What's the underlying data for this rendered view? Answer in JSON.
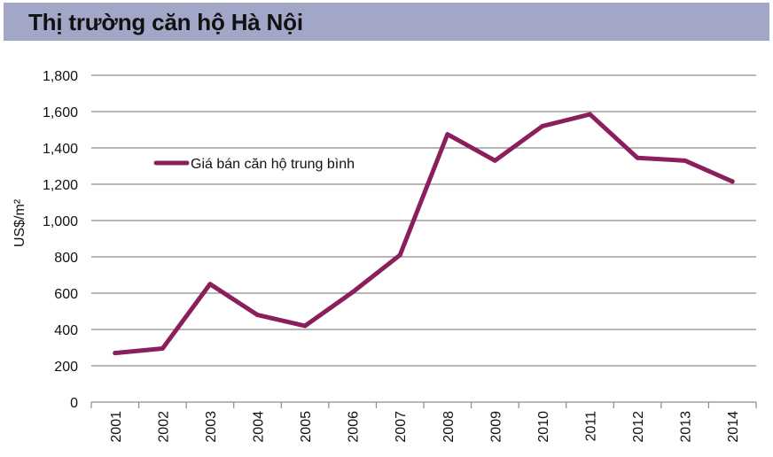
{
  "header": {
    "title": "Thị trường căn hộ Hà Nội"
  },
  "chart_data": {
    "type": "line",
    "title": "Thị trường căn hộ Hà Nội",
    "xlabel": "",
    "ylabel": "US$/m²",
    "ylim": [
      0,
      1800
    ],
    "yticks": [
      0,
      200,
      400,
      600,
      800,
      1000,
      1200,
      1400,
      1600,
      1800
    ],
    "ytick_labels": [
      "0",
      "200",
      "400",
      "600",
      "800",
      "1,000",
      "1,200",
      "1,400",
      "1,600",
      "1,800"
    ],
    "categories": [
      "2001",
      "2002",
      "2003",
      "2004",
      "2005",
      "2006",
      "2007",
      "2008",
      "2009",
      "2010",
      "2011",
      "2012",
      "2013",
      "2014"
    ],
    "series": [
      {
        "name": "Giá bán căn hộ trung bình",
        "values": [
          270,
          295,
          650,
          480,
          420,
          605,
          810,
          1475,
          1330,
          1520,
          1585,
          1345,
          1330,
          1215
        ],
        "color": "#8b1f5c"
      }
    ],
    "grid": true,
    "legend": "top-left"
  }
}
